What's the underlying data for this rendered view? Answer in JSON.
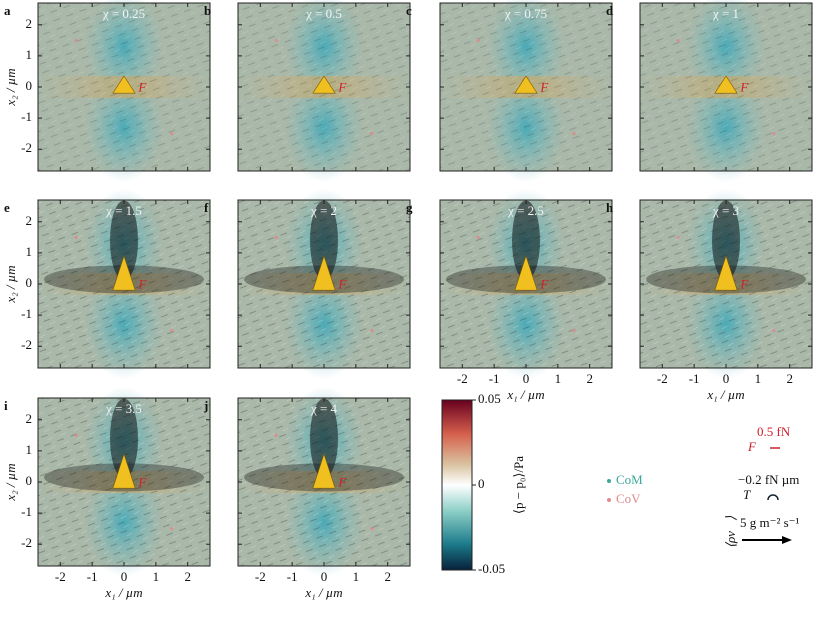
{
  "panels": [
    {
      "label": "a",
      "title": "χ = 0.25"
    },
    {
      "label": "b",
      "title": "χ = 0.5"
    },
    {
      "label": "c",
      "title": "χ = 0.75"
    },
    {
      "label": "d",
      "title": "χ = 1"
    },
    {
      "label": "e",
      "title": "χ = 1.5"
    },
    {
      "label": "f",
      "title": "χ = 2"
    },
    {
      "label": "g",
      "title": "χ = 2.5"
    },
    {
      "label": "h",
      "title": "χ = 3"
    },
    {
      "label": "i",
      "title": "χ = 3.5"
    },
    {
      "label": "j",
      "title": "χ = 4"
    }
  ],
  "axes": {
    "xlabel": "x₁ / µm",
    "ylabel": "x₂ / µm",
    "xlim": [
      -2.7,
      2.7
    ],
    "ylim": [
      -2.7,
      2.7
    ],
    "xticks": [
      -2,
      -1,
      0,
      1,
      2
    ],
    "yticks": [
      -2,
      -1,
      0,
      1,
      2
    ]
  },
  "colorbar": {
    "label": "⟨p − p₀⟩/Pa",
    "lim": [
      -0.05,
      0.05
    ],
    "ticks": [
      0.05,
      0,
      -0.05
    ]
  },
  "legend": {
    "com": "CoM",
    "cov": "CoV",
    "force_symbol": "F⃗",
    "force_scale": "0.5 fN",
    "torque_symbol": "T",
    "torque_scale": "−0.2 fN µm",
    "flux_symbol": "⟨ρv⃗⟩",
    "flux_scale": "5 g m⁻² s⁻¹"
  }
}
